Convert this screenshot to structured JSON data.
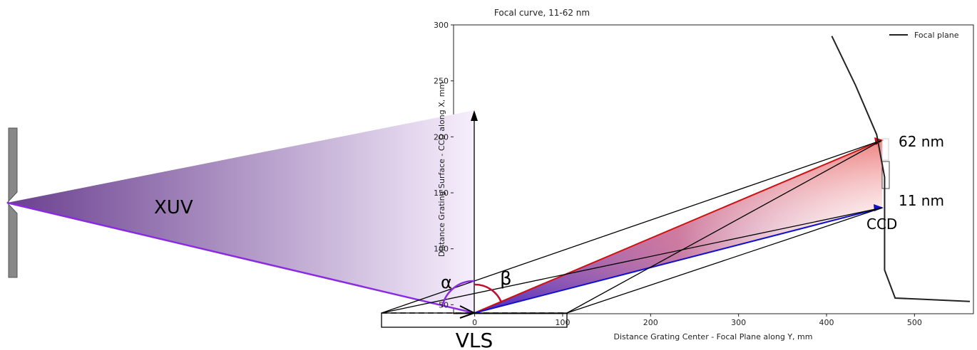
{
  "chart_data": {
    "type": "line",
    "title": "Focal curve, 11-62 nm",
    "xlabel": "Distance Grating Center - Focal Plane along Y, mm",
    "ylabel": "Distance Grating Surface - CCD along X, mm",
    "series": [
      {
        "name": "Focal plane",
        "color": "#222222",
        "x": [
          406,
          433,
          457,
          466,
          466,
          466,
          478,
          506,
          563
        ],
        "values": [
          290,
          246,
          202,
          164,
          113,
          81,
          56,
          55,
          53
        ]
      }
    ],
    "xlim": [
      -24,
      567
    ],
    "ylim": [
      42,
      300
    ],
    "xticks": [
      0,
      100,
      200,
      300,
      400,
      500
    ],
    "yticks": [
      50,
      100,
      150,
      200,
      250,
      300
    ],
    "legend": "upper right",
    "annotations": [
      "XUV",
      "α",
      "β",
      "62 nm",
      "11 nm",
      "CCD",
      "VLS"
    ]
  }
}
